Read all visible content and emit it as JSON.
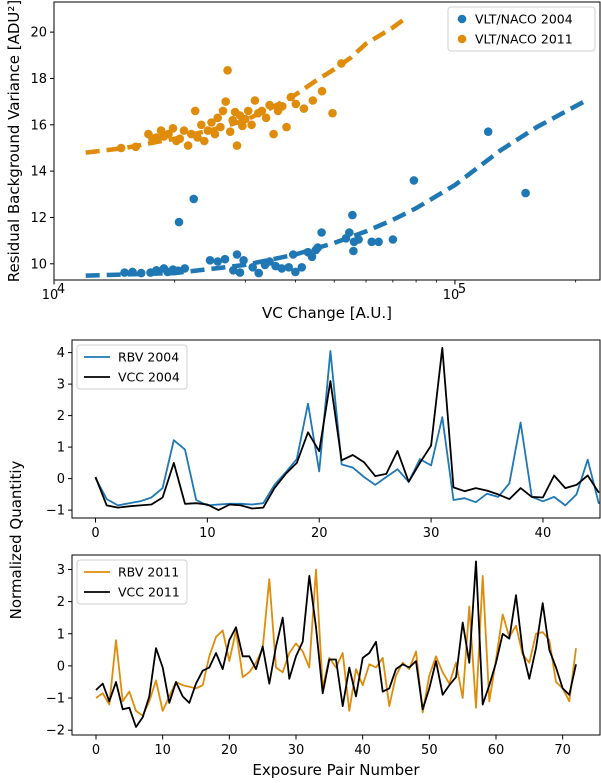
{
  "chart_data": [
    {
      "type": "scatter",
      "xlabel": "VC Change [A.U.]",
      "ylabel": "Residual Background Variance [ADU²]",
      "xscale": "log",
      "xlim": [
        10000,
        230000
      ],
      "ylim": [
        9.3,
        21.3
      ],
      "xticks": [
        {
          "v": 10000,
          "label": "10",
          "exp": "4"
        },
        {
          "v": 100000,
          "label": "10",
          "exp": "5"
        }
      ],
      "yticks": [
        10,
        12,
        14,
        16,
        18,
        20
      ],
      "legend_position": "top-right",
      "series": [
        {
          "name": "VLT/NACO 2004",
          "color": "#1f77b4",
          "points": [
            [
              15000,
              9.62
            ],
            [
              15700,
              9.65
            ],
            [
              16500,
              9.6
            ],
            [
              17400,
              9.62
            ],
            [
              18000,
              9.72
            ],
            [
              18800,
              9.8
            ],
            [
              19200,
              9.65
            ],
            [
              19800,
              9.75
            ],
            [
              20400,
              9.7
            ],
            [
              21200,
              9.8
            ],
            [
              20500,
              11.8
            ],
            [
              22300,
              12.8
            ],
            [
              24500,
              10.15
            ],
            [
              25600,
              10.1
            ],
            [
              26700,
              10.2
            ],
            [
              28000,
              9.72
            ],
            [
              28600,
              10.4
            ],
            [
              29100,
              9.62
            ],
            [
              29700,
              10.15
            ],
            [
              31300,
              9.85
            ],
            [
              32400,
              9.6
            ],
            [
              33600,
              9.95
            ],
            [
              34500,
              10.1
            ],
            [
              35700,
              9.9
            ],
            [
              37000,
              9.8
            ],
            [
              38500,
              9.85
            ],
            [
              39500,
              10.4
            ],
            [
              40000,
              9.65
            ],
            [
              41500,
              9.85
            ],
            [
              43000,
              10.5
            ],
            [
              44000,
              10.3
            ],
            [
              45000,
              10.6
            ],
            [
              45500,
              10.7
            ],
            [
              46500,
              11.35
            ],
            [
              53500,
              11.1
            ],
            [
              54500,
              11.35
            ],
            [
              55500,
              12.1
            ],
            [
              55800,
              10.55
            ],
            [
              56000,
              10.95
            ],
            [
              57500,
              11.05
            ],
            [
              62000,
              10.95
            ],
            [
              64500,
              10.95
            ],
            [
              70000,
              11.05
            ],
            [
              79000,
              13.6
            ],
            [
              121000,
              15.7
            ],
            [
              150000,
              13.05
            ]
          ]
        },
        {
          "name": "VLT/NACO 2011",
          "color": "#e08c0b",
          "points": [
            [
              14700,
              15.0
            ],
            [
              16000,
              15.05
            ],
            [
              17200,
              15.6
            ],
            [
              17600,
              15.4
            ],
            [
              18000,
              15.45
            ],
            [
              18500,
              15.75
            ],
            [
              18800,
              15.5
            ],
            [
              19300,
              15.6
            ],
            [
              19800,
              15.85
            ],
            [
              20200,
              15.3
            ],
            [
              20600,
              15.4
            ],
            [
              21100,
              15.75
            ],
            [
              21600,
              15.1
            ],
            [
              22000,
              15.6
            ],
            [
              22500,
              16.6
            ],
            [
              22800,
              15.45
            ],
            [
              23300,
              16.0
            ],
            [
              23700,
              15.3
            ],
            [
              24200,
              15.75
            ],
            [
              24700,
              16.1
            ],
            [
              25200,
              15.6
            ],
            [
              25600,
              16.3
            ],
            [
              26000,
              15.9
            ],
            [
              26400,
              16.6
            ],
            [
              26800,
              17.0
            ],
            [
              27100,
              18.35
            ],
            [
              27500,
              15.7
            ],
            [
              27900,
              16.2
            ],
            [
              28300,
              16.55
            ],
            [
              28600,
              15.1
            ],
            [
              29100,
              16.4
            ],
            [
              29500,
              15.95
            ],
            [
              30000,
              16.25
            ],
            [
              30500,
              16.6
            ],
            [
              31100,
              16.0
            ],
            [
              31700,
              17.05
            ],
            [
              32300,
              16.5
            ],
            [
              33000,
              16.6
            ],
            [
              33800,
              16.3
            ],
            [
              34500,
              16.85
            ],
            [
              35300,
              15.6
            ],
            [
              36200,
              16.6
            ],
            [
              37100,
              16.8
            ],
            [
              38000,
              15.9
            ],
            [
              39000,
              17.2
            ],
            [
              40100,
              16.9
            ],
            [
              42000,
              16.7
            ],
            [
              44200,
              17.05
            ],
            [
              46600,
              17.45
            ],
            [
              49500,
              16.5
            ],
            [
              52100,
              18.65
            ]
          ]
        }
      ],
      "fits": [
        {
          "name": "VLT/NACO 2004",
          "color": "#1f77b4",
          "points": [
            [
              12000,
              9.49
            ],
            [
              20000,
              9.6
            ],
            [
              30000,
              9.95
            ],
            [
              40000,
              10.4
            ],
            [
              50000,
              10.9
            ],
            [
              60000,
              11.4
            ],
            [
              70000,
              11.9
            ],
            [
              80000,
              12.4
            ],
            [
              100000,
              13.4
            ],
            [
              130000,
              14.9
            ],
            [
              160000,
              15.9
            ],
            [
              190000,
              16.6
            ],
            [
              215000,
              17.1
            ]
          ]
        },
        {
          "name": "VLT/NACO 2011",
          "color": "#e08c0b",
          "points": [
            [
              12000,
              14.8
            ],
            [
              15000,
              15.0
            ],
            [
              20000,
              15.4
            ],
            [
              25000,
              15.8
            ],
            [
              30000,
              16.2
            ],
            [
              35000,
              16.75
            ],
            [
              40000,
              17.3
            ],
            [
              45000,
              17.9
            ],
            [
              50000,
              18.4
            ],
            [
              55000,
              18.9
            ],
            [
              60000,
              19.5
            ],
            [
              70000,
              20.2
            ],
            [
              76000,
              20.65
            ]
          ]
        }
      ]
    },
    {
      "type": "line",
      "xlim": [
        -2.1,
        45.1
      ],
      "ylim": [
        -1.25,
        4.4
      ],
      "xticks": [
        0,
        10,
        20,
        30,
        40
      ],
      "yticks": [
        -1,
        0,
        1,
        2,
        3,
        4
      ],
      "legend_position": "top-left",
      "series": [
        {
          "name": "RBV 2004",
          "color": "#1f77b4",
          "values": [
            0.02,
            -0.65,
            -0.85,
            -0.78,
            -0.72,
            -0.6,
            -0.3,
            1.22,
            0.92,
            -0.68,
            -0.85,
            -0.82,
            -0.8,
            -0.8,
            -0.82,
            -0.78,
            -0.2,
            0.2,
            0.62,
            2.38,
            0.23,
            4.05,
            0.45,
            0.35,
            0.05,
            -0.2,
            0.05,
            0.3,
            -0.1,
            0.62,
            0.42,
            1.95,
            -0.68,
            -0.62,
            -0.75,
            -0.48,
            -0.58,
            -0.15,
            1.78,
            -0.58,
            -0.72,
            -0.58,
            -0.85,
            -0.5,
            0.6,
            -0.8
          ]
        },
        {
          "name": "VCC 2004",
          "color": "#000000",
          "values": [
            0.05,
            -0.85,
            -0.92,
            -0.88,
            -0.85,
            -0.82,
            -0.6,
            0.5,
            -0.8,
            -0.78,
            -0.82,
            -1.0,
            -0.82,
            -0.85,
            -0.95,
            -0.92,
            -0.3,
            0.15,
            0.5,
            1.47,
            0.87,
            3.1,
            0.58,
            0.75,
            0.52,
            0.08,
            0.15,
            0.88,
            -0.1,
            0.5,
            1.05,
            4.15,
            -0.28,
            -0.4,
            -0.3,
            -0.38,
            -0.5,
            -0.65,
            -0.3,
            -0.58,
            -0.6,
            0.1,
            -0.3,
            -0.2,
            0.1,
            -0.45
          ]
        }
      ]
    },
    {
      "type": "line",
      "xlabel": "Exposure Pair Number",
      "xlim": [
        -3.6,
        75.6
      ],
      "ylim": [
        -2.15,
        3.45
      ],
      "xticks": [
        0,
        10,
        20,
        30,
        40,
        50,
        60,
        70
      ],
      "yticks": [
        -2,
        -1,
        0,
        1,
        2,
        3
      ],
      "legend_position": "top-left",
      "series": [
        {
          "name": "RBV 2011",
          "color": "#e08c0b",
          "values": [
            -1.0,
            -0.85,
            -1.2,
            0.8,
            -1.1,
            -0.8,
            -1.4,
            -1.55,
            -1.1,
            -0.45,
            -1.4,
            -0.95,
            -0.5,
            -0.6,
            -0.65,
            -0.7,
            -0.6,
            0.3,
            0.9,
            1.1,
            0.15,
            1.1,
            -0.35,
            -0.2,
            0.1,
            0.55,
            2.7,
            -0.05,
            -0.2,
            0.4,
            0.7,
            0.45,
            -0.05,
            3.0,
            -0.7,
            0.25,
            -0.05,
            0.4,
            -1.4,
            -0.1,
            -0.6,
            0.05,
            -0.05,
            0.25,
            -1.25,
            -0.3,
            0.1,
            -0.1,
            0.45,
            -1.45,
            -0.3,
            0.3,
            -0.2,
            -0.55,
            0.1,
            -1.0,
            1.85,
            -1.3,
            2.8,
            -1.1,
            0.2,
            1.6,
            0.9,
            1.25,
            0.35,
            0.1,
            1.0,
            1.05,
            0.8,
            -0.5,
            -0.7,
            -1.1,
            0.55
          ]
        },
        {
          "name": "VCC 2011",
          "color": "#000000",
          "values": [
            -0.75,
            -0.55,
            -1.1,
            -0.5,
            -1.35,
            -1.3,
            -1.9,
            -1.6,
            -0.95,
            0.55,
            -0.05,
            -1.15,
            -0.5,
            -0.95,
            -1.15,
            -0.55,
            -0.15,
            -0.05,
            0.4,
            -0.1,
            0.8,
            1.2,
            0.3,
            0.3,
            -0.1,
            0.6,
            -0.55,
            0.6,
            1.5,
            -0.4,
            0.3,
            0.75,
            2.8,
            1.2,
            -0.85,
            0.2,
            0.2,
            -1.25,
            -0.05,
            -0.95,
            0.25,
            0.4,
            0.75,
            -0.8,
            -0.7,
            -0.1,
            0.05,
            -0.05,
            0.15,
            -1.35,
            -0.7,
            0.15,
            -0.9,
            -0.6,
            -0.35,
            1.35,
            0.1,
            3.25,
            -1.2,
            -0.6,
            0.1,
            1.0,
            0.85,
            2.2,
            0.45,
            -0.4,
            0.55,
            1.95,
            0.5,
            -0.05,
            -0.7,
            -0.9,
            0.05
          ]
        }
      ]
    }
  ],
  "shared_ylabel": "Normalized Quantitiy",
  "text_nodes": {
    "ax1_xlabel": "VC Change [A.U.]",
    "ax1_ylabel": "Residual Background Variance [ADU²]",
    "shared_ylabel": "Normalized Quantitiy",
    "ax3_xlabel": "Exposure Pair Number"
  }
}
